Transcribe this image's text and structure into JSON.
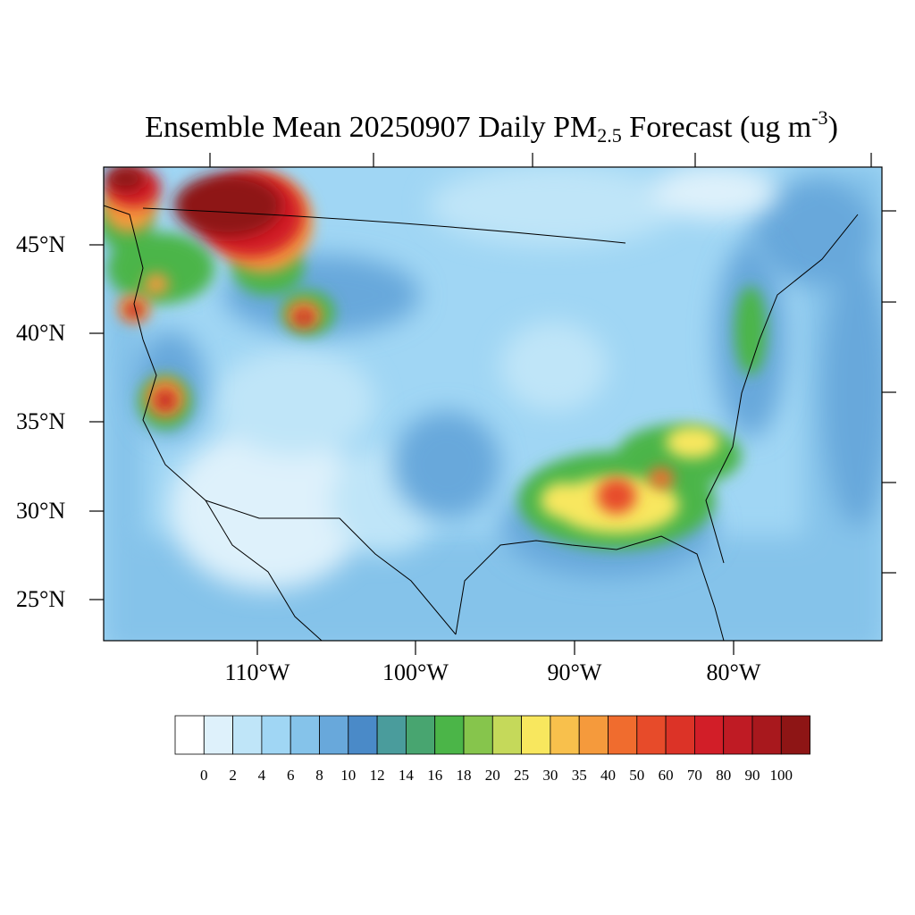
{
  "title": {
    "main": "Ensemble Mean 20250907 Daily PM",
    "sub": "2.5",
    "tail": " Forecast (ug m",
    "sup": "-3",
    "close": ")"
  },
  "lat_labels": [
    "45°N",
    "40°N",
    "35°N",
    "30°N",
    "25°N"
  ],
  "lon_labels": [
    "110°W",
    "100°W",
    "90°W",
    "80°W"
  ],
  "colorbar": {
    "colors": [
      "#ffffff",
      "#def1fb",
      "#bfe5f8",
      "#a0d6f4",
      "#85c3ea",
      "#68a8db",
      "#4a8ac8",
      "#4a9c9c",
      "#48a570",
      "#4bb548",
      "#86c54c",
      "#c5d95a",
      "#f8e75e",
      "#f8c04c",
      "#f59a3c",
      "#f06c2e",
      "#e74b2a",
      "#dc3327",
      "#d21e28",
      "#bf1b24",
      "#a8181d",
      "#8e1515"
    ],
    "labels": [
      "0",
      "2",
      "4",
      "6",
      "8",
      "10",
      "12",
      "14",
      "16",
      "18",
      "20",
      "25",
      "30",
      "35",
      "40",
      "50",
      "60",
      "70",
      "80",
      "90",
      "100"
    ]
  },
  "palette": {
    "background": "#a0d6f4",
    "ocean": "#85c3ea",
    "low": "#def1fb",
    "light": "#bfe5f8",
    "mid": "#68a8db",
    "green": "#4bb548",
    "yellow": "#f8e75e",
    "orange": "#f59a3c",
    "red": "#dc3327",
    "darkred": "#8e1515"
  }
}
